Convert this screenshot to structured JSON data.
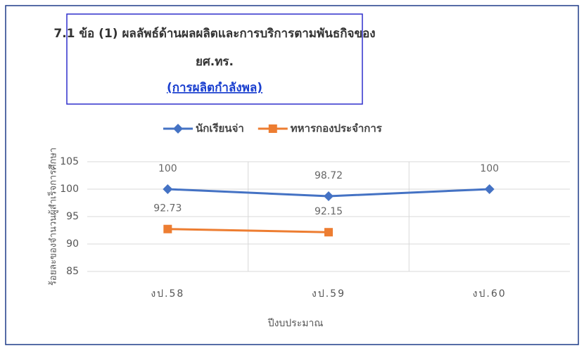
{
  "chart_data": {
    "type": "line",
    "title": "7.1 ข้อ (1) ผลลัพธ์ด้านผลผลิตและการบริการตามพันธกิจของ",
    "title_line2": "ยศ.ทร.",
    "subtitle": "(การผลิตกำลังพล)",
    "x_label": "ปีงบประมาณ",
    "y_label": "ร้อยละของจำนวนผู้สำเร็จการศึกษา",
    "categories": [
      "งป.58",
      "งป.59",
      "งป.60"
    ],
    "series": [
      {
        "name": "นักเรียนจ่า",
        "color": "#4472c4",
        "marker": "diamond",
        "values": [
          100,
          98.72,
          100
        ]
      },
      {
        "name": "ทหารกองประจำการ",
        "color": "#ed7d31",
        "marker": "square",
        "values": [
          92.73,
          92.15,
          null
        ]
      }
    ],
    "ylim": [
      85,
      105
    ],
    "yticks": [
      85,
      90,
      95,
      100,
      105
    ],
    "grid": true,
    "legend": "top"
  }
}
